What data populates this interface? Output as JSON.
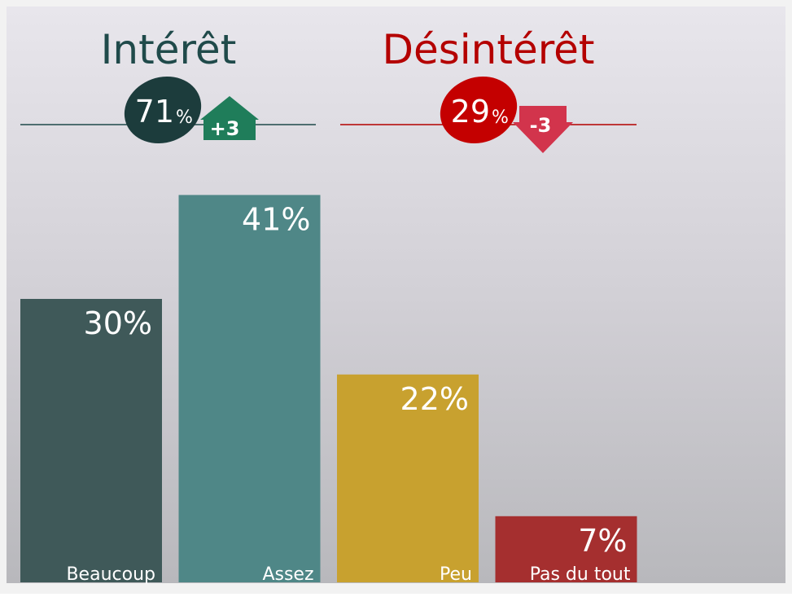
{
  "chart_data": {
    "type": "bar",
    "categories": [
      "Beaucoup",
      "Assez",
      "Peu",
      "Pas du tout"
    ],
    "values": [
      30,
      41,
      22,
      7
    ],
    "value_labels": [
      "30%",
      "41%",
      "22%",
      "7%"
    ],
    "colors": [
      "#3f5959",
      "#4f8787",
      "#c8a12f",
      "#a52f2f"
    ],
    "ylim": [
      0,
      60
    ],
    "groups": [
      {
        "title": "Intérêt",
        "color": "#1f4a4a",
        "bubble_color": "#1c3c3c",
        "share": 71,
        "share_unit": "%",
        "change": "+3",
        "change_color": "#1f7d5a",
        "direction": "up"
      },
      {
        "title": "Désintérêt",
        "color": "#b40000",
        "bubble_color": "#c40000",
        "share": 29,
        "share_unit": "%",
        "change": "-3",
        "change_color": "#d2344c",
        "direction": "down"
      }
    ]
  }
}
